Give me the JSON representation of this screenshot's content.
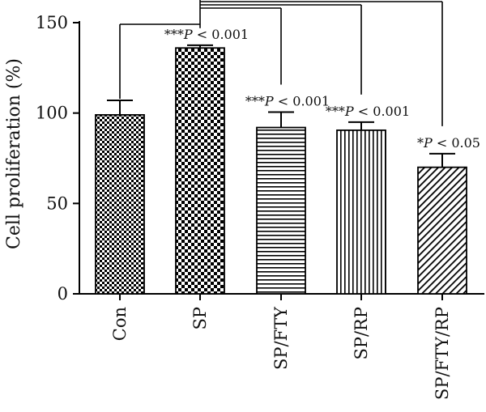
{
  "chart_data": {
    "type": "bar",
    "title": "",
    "xlabel": "",
    "ylabel": "Cell proliferation (%)",
    "ylim": [
      0,
      150
    ],
    "yticks": [
      "0",
      "50",
      "100",
      "150"
    ],
    "categories": [
      "Con",
      "SP",
      "SP/FTY",
      "SP/RP",
      "SP/FTY/RP"
    ],
    "values": [
      99,
      136,
      92,
      90.5,
      70
    ],
    "errors": [
      8,
      1.5,
      8.5,
      4.5,
      7.5
    ],
    "patterns": [
      "fine-checker",
      "checker",
      "horizontal-lines",
      "vertical-lines",
      "diagonal-lines"
    ],
    "annotations": [
      {
        "category": "SP",
        "stars": "***",
        "text": "P < 0.001"
      },
      {
        "category": "SP/FTY",
        "stars": "***",
        "text": "P < 0.001"
      },
      {
        "category": "SP/RP",
        "stars": "***",
        "text": "P < 0.001"
      },
      {
        "category": "SP/FTY/RP",
        "stars": "*",
        "text": "P < 0.05"
      }
    ],
    "comparison_brackets": [
      {
        "from": "Con",
        "to": "SP"
      },
      {
        "from": "SP",
        "to": "SP/FTY"
      },
      {
        "from": "SP",
        "to": "SP/RP"
      },
      {
        "from": "SP",
        "to": "SP/FTY/RP"
      }
    ],
    "colors": {
      "bar_fill": "#000000",
      "background": "#ffffff"
    },
    "grid": false
  }
}
